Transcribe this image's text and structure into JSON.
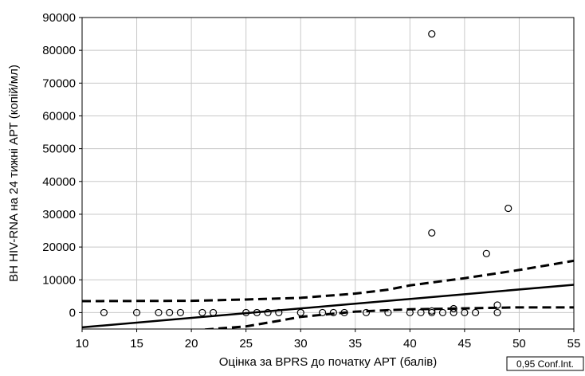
{
  "chart_data": {
    "type": "scatter",
    "xlabel": "Оцінка за BPRS до початку АРТ (балів)",
    "ylabel": "ВН HIV-RNA на 24 тижні АРТ (копій/мл)",
    "xlim": [
      10,
      55
    ],
    "ylim": [
      -5000,
      90000
    ],
    "x_ticks": [
      "10",
      "15",
      "20",
      "25",
      "30",
      "35",
      "40",
      "45",
      "50",
      "55"
    ],
    "y_ticks": [
      "0",
      "10000",
      "20000",
      "30000",
      "40000",
      "50000",
      "60000",
      "70000",
      "80000",
      "90000"
    ],
    "grid": true,
    "legend_text": "0,95 Conf.Int.",
    "legend_position": "bottom-right",
    "points": [
      {
        "x": 12,
        "y": 0
      },
      {
        "x": 15,
        "y": 0
      },
      {
        "x": 17,
        "y": 0
      },
      {
        "x": 18,
        "y": 0
      },
      {
        "x": 19,
        "y": 0
      },
      {
        "x": 21,
        "y": 0
      },
      {
        "x": 22,
        "y": 0
      },
      {
        "x": 25,
        "y": 0
      },
      {
        "x": 26,
        "y": 0
      },
      {
        "x": 27,
        "y": 0
      },
      {
        "x": 28,
        "y": 0
      },
      {
        "x": 30,
        "y": 0
      },
      {
        "x": 32,
        "y": 0
      },
      {
        "x": 33,
        "y": 0
      },
      {
        "x": 34,
        "y": 0
      },
      {
        "x": 36,
        "y": 0
      },
      {
        "x": 38,
        "y": 0
      },
      {
        "x": 40,
        "y": 0
      },
      {
        "x": 41,
        "y": 0
      },
      {
        "x": 42,
        "y": 0
      },
      {
        "x": 42,
        "y": 500
      },
      {
        "x": 43,
        "y": 0
      },
      {
        "x": 44,
        "y": 0
      },
      {
        "x": 44,
        "y": 1200
      },
      {
        "x": 45,
        "y": 0
      },
      {
        "x": 46,
        "y": 0
      },
      {
        "x": 48,
        "y": 0
      },
      {
        "x": 48,
        "y": 2300
      },
      {
        "x": 42,
        "y": 85000
      },
      {
        "x": 42,
        "y": 24300
      },
      {
        "x": 47,
        "y": 18000
      },
      {
        "x": 49,
        "y": 31800
      }
    ],
    "regression_line": {
      "x": [
        10,
        55
      ],
      "y": [
        -4500,
        8500
      ]
    },
    "conf_upper": {
      "x": [
        10,
        20,
        25,
        30,
        35,
        38,
        40,
        45,
        50,
        55
      ],
      "y": [
        3500,
        3600,
        4000,
        4500,
        5800,
        7000,
        8300,
        10500,
        13000,
        15800
      ]
    },
    "conf_lower": {
      "x": [
        20,
        25,
        28,
        30,
        35,
        40,
        45,
        50,
        55
      ],
      "y": [
        -5500,
        -4200,
        -2500,
        -1300,
        300,
        1000,
        1300,
        1600,
        1600
      ]
    }
  }
}
